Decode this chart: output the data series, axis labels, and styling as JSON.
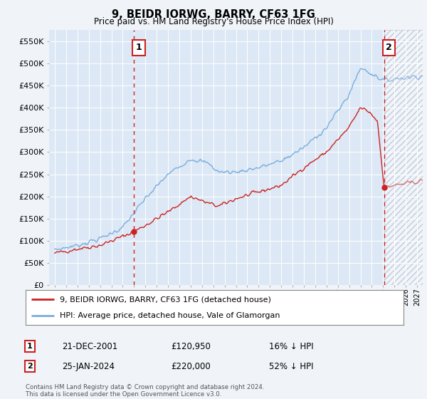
{
  "title": "9, BEIDR IORWG, BARRY, CF63 1FG",
  "subtitle": "Price paid vs. HM Land Registry's House Price Index (HPI)",
  "ylabel_ticks": [
    "£0",
    "£50K",
    "£100K",
    "£150K",
    "£200K",
    "£250K",
    "£300K",
    "£350K",
    "£400K",
    "£450K",
    "£500K",
    "£550K"
  ],
  "ytick_values": [
    0,
    50000,
    100000,
    150000,
    200000,
    250000,
    300000,
    350000,
    400000,
    450000,
    500000,
    550000
  ],
  "ylim": [
    0,
    575000
  ],
  "xlim_start": 1994.5,
  "xlim_end": 2027.5,
  "background_color": "#f0f4f8",
  "plot_bg_color": "#dce8f5",
  "hatch_region_start": 2024.1,
  "hatch_region_end": 2027.5,
  "marker1_x": 2002.0,
  "marker1_price": 120950,
  "marker2_x": 2024.1,
  "marker2_price": 220000,
  "red_line_color": "#cc2222",
  "blue_line_color": "#7aaddd",
  "legend_label_red": "9, BEIDR IORWG, BARRY, CF63 1FG (detached house)",
  "legend_label_blue": "HPI: Average price, detached house, Vale of Glamorgan",
  "annotation1_date": "21-DEC-2001",
  "annotation1_price": "£120,950",
  "annotation1_hpi": "16% ↓ HPI",
  "annotation2_date": "25-JAN-2024",
  "annotation2_price": "£220,000",
  "annotation2_hpi": "52% ↓ HPI",
  "footnote": "Contains HM Land Registry data © Crown copyright and database right 2024.\nThis data is licensed under the Open Government Licence v3.0."
}
